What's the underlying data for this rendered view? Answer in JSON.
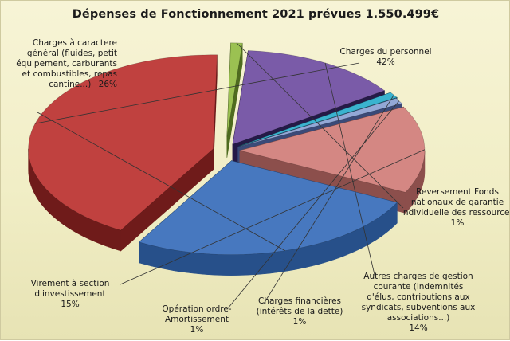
{
  "chart_data": {
    "type": "pie",
    "style": "3d-exploded",
    "title": "Dépenses de Fonctionnement 2021 prévues 1.550.499€",
    "slices": [
      {
        "label_lines": [
          "Charges du personnel"
        ],
        "pct_label": "42%",
        "value": 42,
        "color": "#c0413f",
        "side": "#6f1b1a",
        "explode": 16
      },
      {
        "label_lines": [
          "Reversement Fonds",
          "nationaux de garantie",
          "individuelle des ressources"
        ],
        "pct_label": "1%",
        "value": 1,
        "color": "#9bc152",
        "side": "#4e6b1f",
        "explode": 34
      },
      {
        "label_lines": [
          "Autres charges de gestion",
          "courante (indemnités",
          "d'élus, contributions aux",
          "syndicats, subventions aux",
          "associations...)"
        ],
        "pct_label": "14%",
        "value": 14,
        "color": "#7a5ba8",
        "side": "#251a47",
        "explode": 18
      },
      {
        "label_lines": [
          "Charges financières",
          "(intérêts de la dette)"
        ],
        "pct_label": "1%",
        "value": 1,
        "color": "#3ab3cf",
        "side": "#134e5d",
        "explode": 20
      },
      {
        "label_lines": [
          "Opération ordre-",
          "Amortissement"
        ],
        "pct_label": "1%",
        "value": 1,
        "color": "#93a8d6",
        "side": "#3a4a78",
        "explode": 18
      },
      {
        "label_lines": [
          "Virement à section",
          "d'investissement"
        ],
        "pct_label": "15%",
        "value": 15,
        "color": "#d48783",
        "side": "#8c4f4c",
        "explode": 18
      },
      {
        "label_lines": [
          "Charges à caractere",
          "général (fluides, petit",
          "équipement, carburants",
          "et combustibles, repas",
          "cantine...)"
        ],
        "pct_label": "26%",
        "value": 26,
        "color": "#4778bf",
        "side": "#27508a",
        "explode": 26
      }
    ]
  }
}
